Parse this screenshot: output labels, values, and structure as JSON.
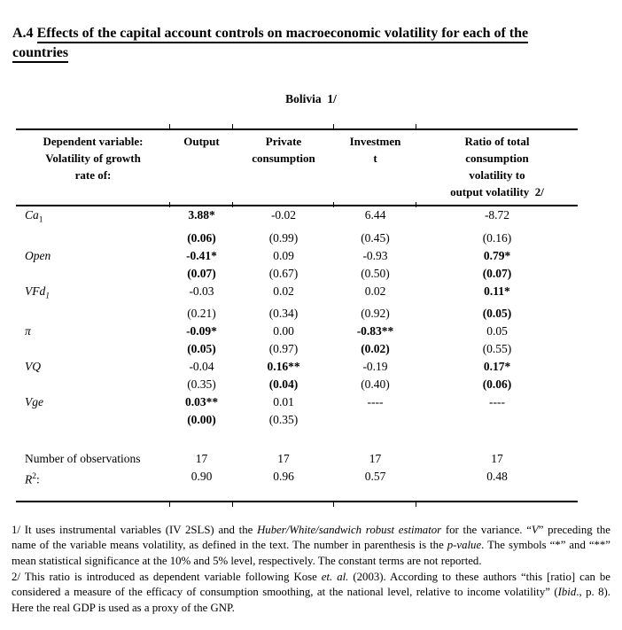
{
  "page": {
    "background": "#ffffff",
    "text_color": "#000000"
  },
  "heading": {
    "number": "A.4 ",
    "line1": "Effects of the capital account controls on macroeconomic volatility for each of the",
    "line2": "countries"
  },
  "table": {
    "caption": "Bolivia  1/",
    "header": {
      "col0": [
        "Dependent variable:",
        "Volatility of growth",
        "rate of:"
      ],
      "col1": [
        "Output"
      ],
      "col2": [
        "Private",
        "consumption"
      ],
      "col3": [
        "Investmen",
        "t"
      ],
      "col4": [
        "Ratio of total",
        "consumption",
        "volatility to",
        "output volatility  2/"
      ]
    },
    "rows": [
      {
        "label": "Ca",
        "sub": "1",
        "c1": "3.88*",
        "c2": "-0.02",
        "c3": "6.44",
        "c4": "-8.72"
      },
      {
        "c1": "(0.06)",
        "c2": "(0.99)",
        "c3": "(0.45)",
        "c4": "(0.16)"
      },
      {
        "label": "Open",
        "c1": "-0.41*",
        "c2": "0.09",
        "c3": "-0.93",
        "c4": "0.79*"
      },
      {
        "c1": "(0.07)",
        "c2": "(0.67)",
        "c3": "(0.50)",
        "c4": "(0.07)"
      },
      {
        "label": "VFd",
        "sub": "1",
        "c1": "-0.03",
        "c2": "0.02",
        "c3": "0.02",
        "c4": "0.11*"
      },
      {
        "c1": "(0.21)",
        "c2": "(0.34)",
        "c3": "(0.92)",
        "c4": "(0.05)"
      },
      {
        "label": "π",
        "c1": "-0.09*",
        "c2": "0.00",
        "c3": "-0.83**",
        "c4": "0.05"
      },
      {
        "c1": "(0.05)",
        "c2": "(0.97)",
        "c3": "(0.02)",
        "c4": "(0.55)"
      },
      {
        "label": "VQ",
        "c1": "-0.04",
        "c2": "0.16**",
        "c3": "-0.19",
        "c4": "0.17*"
      },
      {
        "c1": "(0.35)",
        "c2": "(0.04)",
        "c3": "(0.40)",
        "c4": "(0.06)"
      },
      {
        "label": "Vge",
        "c1": "0.03**",
        "c2": "0.01",
        "c3": "----",
        "c4": "----"
      },
      {
        "c1": "(0.00)",
        "c2": "(0.35)",
        "c3": "",
        "c4": ""
      }
    ],
    "stats": {
      "obs_label": "Number of observations",
      "obs": [
        "17",
        "17",
        "17",
        "17"
      ],
      "r2_label_base": "R",
      "r2_label_sup": "2",
      "r2_label_colon": ":",
      "r2": [
        "0.90",
        "0.96",
        "0.57",
        "0.48"
      ]
    }
  },
  "footnotes": {
    "fn1": {
      "s1": "1/ It uses instrumental variables (IV 2SLS) and the ",
      "s2": "Huber/White/sandwich robust estimator",
      "s3": " for the variance. “",
      "s4": "V",
      "s5": "” preceding the name of the variable means volatility, as defined in the text. The number in parenthesis is the ",
      "s6": "p-value",
      "s7": ". The symbols “*” and “**” mean statistical significance at the 10% and 5% level, respectively. The constant terms are not reported."
    },
    "fn2": {
      "s1": "2/ This ratio is introduced as dependent variable following Kose ",
      "s2": "et. al.",
      "s3": " (2003). According to these authors “this [ratio] can be considered a measure of the efficacy of consumption smoothing, at the national level, relative to income volatility” (",
      "s4": "Ibid",
      "s5": "., p. 8). Here the real GDP is used as a proxy of the GNP."
    }
  }
}
